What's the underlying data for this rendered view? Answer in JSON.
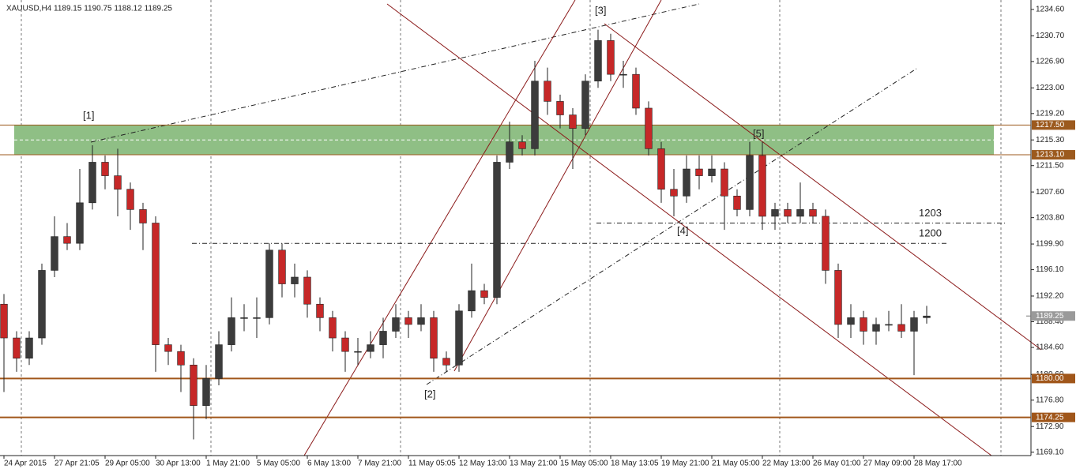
{
  "chart_data": {
    "type": "candlestick",
    "title": "XAUUSD,H4  1189.15 1190.75 1188.12 1189.25",
    "x": [
      0,
      2,
      4,
      6,
      8,
      10,
      12,
      14,
      16,
      18,
      20,
      22,
      24,
      26,
      28,
      30,
      32,
      34,
      36,
      38,
      40,
      42,
      44,
      46,
      48,
      50,
      52,
      54,
      56,
      58,
      60,
      62,
      64,
      66,
      68,
      70,
      72,
      74,
      76,
      78,
      80,
      82,
      84,
      86,
      88,
      90,
      92,
      94,
      96,
      98,
      100,
      102,
      104,
      106,
      108,
      110,
      112,
      114,
      116,
      118,
      120,
      122,
      124,
      126,
      128,
      130,
      132,
      134,
      136,
      138,
      140,
      142,
      144,
      146
    ],
    "open": [
      1191,
      1186,
      1183,
      1186,
      1196,
      1201,
      1200,
      1206,
      1212,
      1210,
      1208,
      1205,
      1203,
      1185,
      1184,
      1182,
      1176,
      1180,
      1185,
      1189,
      1189,
      1189,
      1199,
      1194,
      1195,
      1191,
      1189,
      1186,
      1184,
      1184,
      1185,
      1187,
      1189,
      1188,
      1189,
      1183,
      1182,
      1190,
      1193,
      1192,
      1212,
      1215,
      1214,
      1224,
      1221,
      1219,
      1217,
      1224,
      1230,
      1225,
      1225,
      1220,
      1214,
      1208,
      1207,
      1211,
      1210,
      1211,
      1207,
      1205,
      1213,
      1204,
      1205,
      1204,
      1205,
      1204,
      1196,
      1188,
      1189,
      1187,
      1188,
      1188,
      1187,
      1189
    ],
    "high": [
      1192.5,
      1187,
      1187,
      1197,
      1204,
      1203,
      1211,
      1214.5,
      1213,
      1214,
      1209,
      1206,
      1204,
      1186,
      1185,
      1183,
      1182,
      1187,
      1192,
      1191,
      1192,
      1200,
      1200,
      1197,
      1196,
      1192,
      1190,
      1187,
      1186,
      1187,
      1189,
      1191,
      1190,
      1191,
      1190,
      1184,
      1191,
      1197,
      1194,
      1213,
      1218,
      1216,
      1227,
      1226,
      1222,
      1220,
      1225,
      1231.6,
      1231,
      1227,
      1226,
      1221,
      1215,
      1211,
      1213,
      1213,
      1213,
      1212,
      1208,
      1215,
      1215,
      1206,
      1206,
      1209,
      1206,
      1205,
      1197,
      1191,
      1190,
      1189,
      1190,
      1191,
      1190,
      1190.75
    ],
    "low": [
      1178,
      1181,
      1182,
      1185,
      1195,
      1199,
      1199,
      1205,
      1208,
      1204,
      1202,
      1199,
      1181,
      1182,
      1178,
      1171,
      1174,
      1179,
      1184,
      1187,
      1186,
      1188,
      1192,
      1192,
      1189,
      1187,
      1184,
      1181,
      1182,
      1183,
      1183,
      1186,
      1186,
      1187,
      1181,
      1181,
      1181,
      1189,
      1191,
      1191,
      1211,
      1213,
      1213,
      1219,
      1217,
      1211,
      1216,
      1223,
      1224,
      1223,
      1219,
      1213,
      1206,
      1204,
      1206,
      1208,
      1209,
      1202,
      1204,
      1204,
      1202,
      1202,
      1203,
      1203,
      1203,
      1194,
      1186,
      1186,
      1185,
      1185,
      1187,
      1186,
      1180.5,
      1188.12
    ],
    "close": [
      1186,
      1183,
      1186,
      1196,
      1201,
      1200,
      1206,
      1212,
      1210,
      1208,
      1205,
      1203,
      1185,
      1184,
      1182,
      1176,
      1180,
      1185,
      1189,
      1189,
      1189,
      1199,
      1194,
      1195,
      1191,
      1189,
      1186,
      1184,
      1184,
      1185,
      1187,
      1189,
      1188,
      1189,
      1183,
      1182,
      1190,
      1193,
      1192,
      1212,
      1215,
      1214,
      1224,
      1221,
      1219,
      1217,
      1224,
      1230,
      1225,
      1225,
      1220,
      1214,
      1208,
      1207,
      1211,
      1210,
      1211,
      1207,
      1205,
      1213,
      1204,
      1205,
      1204,
      1205,
      1204,
      1196,
      1188,
      1189,
      1187,
      1188,
      1188,
      1187,
      1189,
      1189.25
    ],
    "bull_color": "#3c3c3c",
    "bear_color": "#c62828",
    "xlim": [
      -0.625,
      162.5
    ],
    "ylim": [
      1168.6,
      1236.0
    ],
    "yticks": [
      {
        "value": 1169.1,
        "label": "1169.10"
      },
      {
        "value": 1172.9,
        "label": "1172.90"
      },
      {
        "value": 1176.8,
        "label": "1176.80"
      },
      {
        "value": 1180.6,
        "label": "1180.60"
      },
      {
        "value": 1184.6,
        "label": "1184.60"
      },
      {
        "value": 1188.4,
        "label": "1188.40"
      },
      {
        "value": 1192.2,
        "label": "1192.20"
      },
      {
        "value": 1196.1,
        "label": "1196.10"
      },
      {
        "value": 1199.9,
        "label": "1199.90"
      },
      {
        "value": 1203.8,
        "label": "1203.80"
      },
      {
        "value": 1207.6,
        "label": "1207.60"
      },
      {
        "value": 1211.5,
        "label": "1211.50"
      },
      {
        "value": 1215.3,
        "label": "1215.30"
      },
      {
        "value": 1219.2,
        "label": "1219.20"
      },
      {
        "value": 1223.0,
        "label": "1223.00"
      },
      {
        "value": 1226.9,
        "label": "1226.90"
      },
      {
        "value": 1230.7,
        "label": "1230.70"
      },
      {
        "value": 1234.6,
        "label": "1234.60"
      }
    ],
    "xticks": [
      {
        "value": 0,
        "label": "24 Apr 2015"
      },
      {
        "value": 8,
        "label": "27 Apr 21:05"
      },
      {
        "value": 16,
        "label": "29 Apr 05:00"
      },
      {
        "value": 24,
        "label": "30 Apr 13:00"
      },
      {
        "value": 32,
        "label": "1 May 21:00"
      },
      {
        "value": 40,
        "label": "5 May 05:00"
      },
      {
        "value": 48,
        "label": "6 May 13:00"
      },
      {
        "value": 56,
        "label": "7 May 21:00"
      },
      {
        "value": 64,
        "label": "11 May 05:05"
      },
      {
        "value": 72,
        "label": "12 May 13:00"
      },
      {
        "value": 80,
        "label": "13 May 21:00"
      },
      {
        "value": 88,
        "label": "15 May 05:00"
      },
      {
        "value": 96,
        "label": "18 May 13:05"
      },
      {
        "value": 104,
        "label": "19 May 21:00"
      },
      {
        "value": 112,
        "label": "21 May 05:00"
      },
      {
        "value": 120,
        "label": "22 May 13:00"
      },
      {
        "value": 128,
        "label": "26 May 01:00"
      },
      {
        "value": 136,
        "label": "27 May 09:00"
      },
      {
        "value": 144,
        "label": "28 May 17:00"
      }
    ],
    "levels": [
      {
        "value": 1217.5,
        "label": "1217.50",
        "color": "#9c5a1e"
      },
      {
        "value": 1213.1,
        "label": "1213.10",
        "color": "#9c5a1e"
      },
      {
        "value": 1180.0,
        "label": "1180.00",
        "color": "#a0561a"
      },
      {
        "value": 1174.25,
        "label": "1174.25",
        "color": "#a0561a"
      }
    ],
    "zone_color": "#8fbf85",
    "current_price": {
      "value": 1189.25,
      "label": "1189.25"
    },
    "dashed_levels": [
      1203,
      1200
    ],
    "annotations": [
      "[1]",
      "[2]",
      "[3]",
      "[4]",
      "[5]"
    ]
  }
}
